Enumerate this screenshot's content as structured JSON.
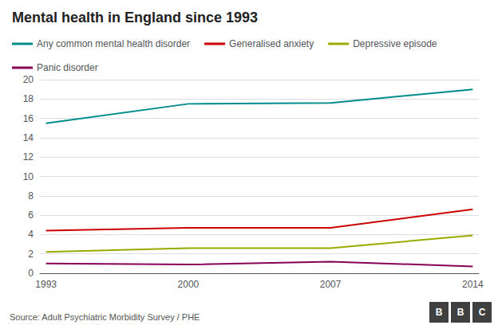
{
  "chart_data": {
    "type": "line",
    "title": "Mental health in England since 1993",
    "x": [
      1993,
      2000,
      2007,
      2014
    ],
    "series": [
      {
        "name": "Any common mental health disorder",
        "color": "#008B8B",
        "values": [
          15.5,
          17.5,
          17.6,
          19.0
        ]
      },
      {
        "name": "Generalised anxiety",
        "color": "#CC0000",
        "values": [
          4.4,
          4.7,
          4.7,
          6.6
        ]
      },
      {
        "name": "Depressive episode",
        "color": "#99AA00",
        "values": [
          2.2,
          2.6,
          2.6,
          3.9
        ]
      },
      {
        "name": "Panic disorder",
        "color": "#880055",
        "values": [
          1.0,
          0.9,
          1.2,
          0.7
        ]
      }
    ],
    "xlim": [
      1992.7,
      2014.3
    ],
    "xticks": [
      1993,
      2000,
      2007,
      2014
    ],
    "ylim": [
      0,
      20
    ],
    "yticks": [
      0,
      2,
      4,
      6,
      8,
      10,
      12,
      14,
      16,
      18,
      20
    ],
    "grid": true,
    "legend": "top",
    "annotations": [
      "Source: Adult Psychiatric Morbidity Survey / PHE",
      "B",
      "B",
      "C"
    ]
  }
}
